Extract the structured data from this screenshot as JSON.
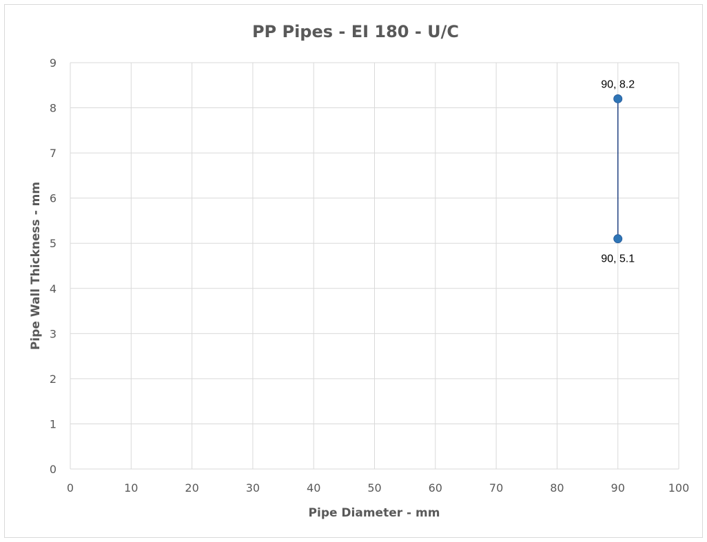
{
  "chart_data": {
    "type": "scatter",
    "title": "PP Pipes - EI 180 - U/C",
    "xlabel": "Pipe Diameter - mm",
    "ylabel": "Pipe Wall Thickness - mm",
    "xlim": [
      0,
      100
    ],
    "ylim": [
      0,
      9
    ],
    "x_ticks": [
      0,
      10,
      20,
      30,
      40,
      50,
      60,
      70,
      80,
      90,
      100
    ],
    "y_ticks": [
      0,
      1,
      2,
      3,
      4,
      5,
      6,
      7,
      8,
      9
    ],
    "grid": true,
    "legend": "none",
    "series": [
      {
        "points": [
          {
            "x": 90,
            "y": 8.2,
            "label": "90, 8.2",
            "label_position": "above"
          },
          {
            "x": 90,
            "y": 5.1,
            "label": "90, 5.1",
            "label_position": "below"
          }
        ],
        "connected": true,
        "marker_color": "#2e75b6",
        "line_color": "#1f3f7f"
      }
    ]
  }
}
